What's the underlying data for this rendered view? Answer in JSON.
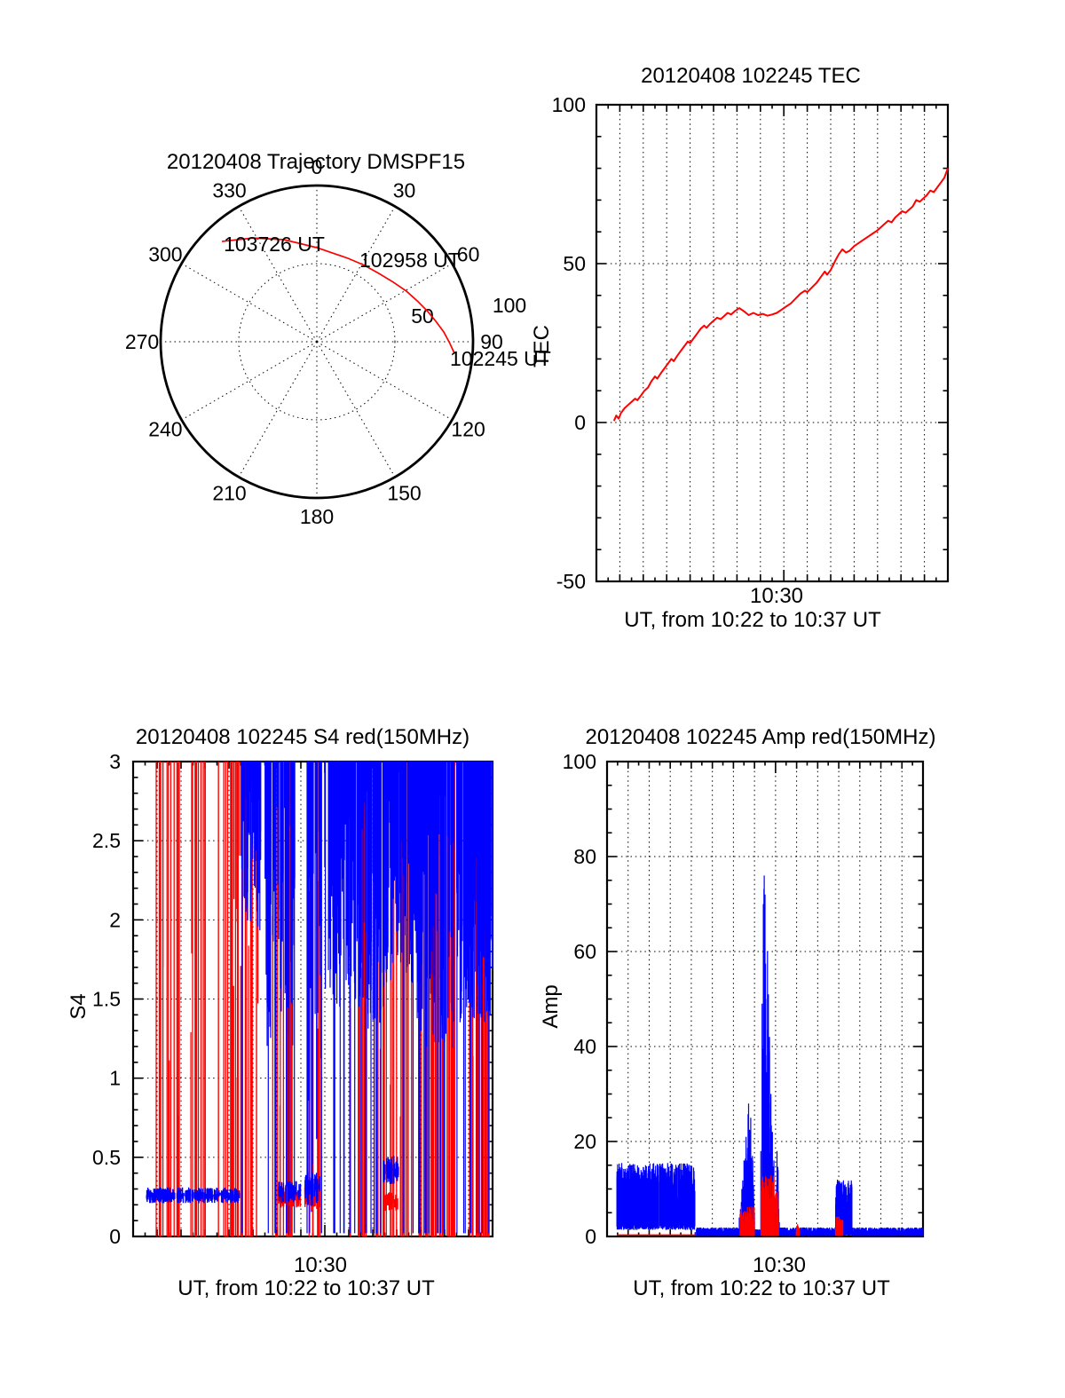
{
  "page": {
    "background": "#ffffff",
    "text_color": "#000000"
  },
  "colors": {
    "series_red": "#ff0000",
    "series_blue": "#0000ff",
    "axis": "#000000"
  },
  "chart_data": [
    {
      "id": "trajectory-polar",
      "type": "line",
      "title": "20120408 Trajectory DMSPF15",
      "grid": "dotted",
      "angle_tick_labels": [
        "0",
        "30",
        "60",
        "90",
        "120",
        "150",
        "180",
        "210",
        "240",
        "270",
        "300",
        "330"
      ],
      "angle_tick_degrees": [
        0,
        30,
        60,
        90,
        120,
        150,
        180,
        210,
        240,
        270,
        300,
        330
      ],
      "radial_tick_labels": [
        "50",
        "100"
      ],
      "radial_tick_values": [
        50,
        100
      ],
      "radial_max": 100,
      "trajectory": {
        "color": "#ff0000",
        "points_angle_radius": [
          [
            -43.4,
            88.4
          ],
          [
            -31.6,
            78.0
          ],
          [
            -17.8,
            68.6
          ],
          [
            0.0,
            60.2
          ],
          [
            10.5,
            57.6
          ],
          [
            20.4,
            57.0
          ],
          [
            31.5,
            57.6
          ],
          [
            42.3,
            59.1
          ],
          [
            52.0,
            62.0
          ],
          [
            60.6,
            65.9
          ],
          [
            68.0,
            69.5
          ],
          [
            74.8,
            73.6
          ],
          [
            80.5,
            77.5
          ],
          [
            85.6,
            81.5
          ],
          [
            90.5,
            85.0
          ],
          [
            94.8,
            88.4
          ]
        ],
        "time_labels": [
          {
            "label": "103726 UT",
            "angle": -43.4,
            "radius": 88.4,
            "dx": 2,
            "dy": 11
          },
          {
            "label": "102958 UT",
            "angle": 42.3,
            "radius": 59.1,
            "dx": -22,
            "dy": -7
          },
          {
            "label": "102245 UT",
            "angle": 94.8,
            "radius": 88.4,
            "dx": -5,
            "dy": 14
          }
        ]
      }
    },
    {
      "id": "tec",
      "type": "line",
      "title": "20120408 102245 TEC",
      "ylabel": "TEC",
      "xlabel": "UT, from 10:22 to 10:37 UT",
      "xtick_label": "10:30",
      "xtick_minute": 8,
      "x_start": "10:22",
      "x_end": "10:37",
      "x_span_minutes": 15,
      "ylim": [
        -50,
        100
      ],
      "ymajor": 50,
      "yminor": 10,
      "ytick_labels": [
        "100",
        "50",
        "0",
        "-50"
      ],
      "ytick_values": [
        100,
        50,
        0,
        -50
      ],
      "grid_y": [
        0,
        50
      ],
      "series": [
        {
          "name": "TEC",
          "color": "#ff0000",
          "points": [
            [
              0.75,
              0.5
            ],
            [
              0.85,
              2.2
            ],
            [
              0.95,
              1.2
            ],
            [
              1.05,
              3.0
            ],
            [
              1.2,
              4.5
            ],
            [
              1.35,
              5.5
            ],
            [
              1.5,
              6.5
            ],
            [
              1.65,
              7.5
            ],
            [
              1.75,
              7.0
            ],
            [
              1.9,
              8.5
            ],
            [
              2.05,
              10.0
            ],
            [
              2.2,
              11.0
            ],
            [
              2.35,
              13.0
            ],
            [
              2.5,
              14.5
            ],
            [
              2.6,
              13.8
            ],
            [
              2.75,
              15.5
            ],
            [
              2.9,
              17.0
            ],
            [
              3.05,
              18.5
            ],
            [
              3.2,
              20.0
            ],
            [
              3.3,
              19.3
            ],
            [
              3.45,
              21.0
            ],
            [
              3.6,
              22.5
            ],
            [
              3.75,
              24.0
            ],
            [
              3.9,
              25.5
            ],
            [
              4.0,
              25.0
            ],
            [
              4.15,
              26.5
            ],
            [
              4.3,
              28.0
            ],
            [
              4.45,
              29.5
            ],
            [
              4.6,
              30.5
            ],
            [
              4.7,
              29.8
            ],
            [
              4.85,
              31.0
            ],
            [
              5.0,
              32.0
            ],
            [
              5.15,
              33.0
            ],
            [
              5.3,
              32.5
            ],
            [
              5.45,
              33.5
            ],
            [
              5.6,
              34.5
            ],
            [
              5.75,
              34.0
            ],
            [
              5.9,
              35.0
            ],
            [
              6.1,
              36.0
            ],
            [
              6.3,
              35.0
            ],
            [
              6.5,
              33.8
            ],
            [
              6.7,
              34.5
            ],
            [
              6.9,
              33.8
            ],
            [
              7.1,
              34.2
            ],
            [
              7.3,
              33.6
            ],
            [
              7.5,
              34.0
            ],
            [
              7.7,
              34.5
            ],
            [
              7.9,
              35.5
            ],
            [
              8.1,
              36.5
            ],
            [
              8.3,
              37.5
            ],
            [
              8.5,
              39.0
            ],
            [
              8.7,
              40.5
            ],
            [
              8.9,
              41.5
            ],
            [
              9.0,
              41.0
            ],
            [
              9.2,
              42.5
            ],
            [
              9.4,
              44.0
            ],
            [
              9.6,
              46.0
            ],
            [
              9.75,
              47.5
            ],
            [
              9.85,
              46.5
            ],
            [
              10.0,
              48.0
            ],
            [
              10.2,
              51.0
            ],
            [
              10.35,
              53.0
            ],
            [
              10.5,
              54.5
            ],
            [
              10.65,
              53.5
            ],
            [
              10.8,
              54.0
            ],
            [
              11.0,
              55.5
            ],
            [
              11.2,
              56.5
            ],
            [
              11.4,
              57.5
            ],
            [
              11.6,
              58.5
            ],
            [
              11.8,
              59.5
            ],
            [
              12.0,
              60.5
            ],
            [
              12.15,
              61.5
            ],
            [
              12.3,
              62.5
            ],
            [
              12.45,
              63.5
            ],
            [
              12.6,
              63.0
            ],
            [
              12.75,
              64.5
            ],
            [
              12.9,
              65.5
            ],
            [
              13.05,
              66.5
            ],
            [
              13.2,
              66.0
            ],
            [
              13.35,
              67.0
            ],
            [
              13.5,
              68.0
            ],
            [
              13.65,
              70.0
            ],
            [
              13.8,
              69.5
            ],
            [
              13.95,
              70.5
            ],
            [
              14.1,
              71.5
            ],
            [
              14.25,
              73.0
            ],
            [
              14.4,
              72.5
            ],
            [
              14.55,
              74.0
            ],
            [
              14.7,
              75.5
            ],
            [
              14.85,
              77.0
            ],
            [
              15.0,
              80.0
            ]
          ]
        }
      ]
    },
    {
      "id": "s4",
      "type": "scintillation-vlines",
      "title": "20120408 102245 S4 red(150MHz)",
      "ylabel": "S4",
      "xlabel": "UT, from 10:22 to 10:37 UT",
      "xtick_label": "10:30",
      "xtick_minute": 8,
      "x_start": "10:22",
      "x_end": "10:37",
      "x_span_minutes": 15,
      "ylim": [
        0,
        3
      ],
      "ymajor": 0.5,
      "yminor": 0.1,
      "ytick_labels": [
        "3",
        "2.5",
        "2",
        "1.5",
        "1",
        "0.5",
        "0"
      ],
      "ytick_values": [
        3,
        2.5,
        2,
        1.5,
        1,
        0.5,
        0
      ],
      "grid_y": [
        0.5,
        1,
        1.5,
        2,
        2.5
      ],
      "red_color": "#ff0000",
      "blue_color": "#0000ff",
      "red_full_bursts": [
        [
          0.95,
          1.95,
          18
        ],
        [
          2.35,
          3.05,
          13
        ],
        [
          3.55,
          4.55,
          26
        ],
        [
          4.55,
          5.3,
          12
        ],
        [
          5.55,
          6.65,
          14
        ],
        [
          7.3,
          7.95,
          8
        ],
        [
          8.95,
          9.8,
          14
        ],
        [
          10.05,
          11.65,
          30
        ],
        [
          11.85,
          13.0,
          22
        ],
        [
          13.1,
          13.45,
          24
        ],
        [
          13.95,
          14.55,
          16
        ],
        [
          14.6,
          15.0,
          12
        ]
      ],
      "blue_canopy": [
        [
          4.5,
          5.35,
          70,
          1.9,
          2.95,
          0.05
        ],
        [
          5.5,
          6.75,
          100,
          1.2,
          2.9,
          0.1
        ],
        [
          7.25,
          8.05,
          28,
          0.1,
          2.6,
          0.18
        ],
        [
          8.15,
          9.6,
          130,
          1.45,
          2.95,
          0.05
        ],
        [
          9.6,
          10.45,
          80,
          1.3,
          2.85,
          0.06
        ],
        [
          10.45,
          11.9,
          130,
          1.6,
          2.95,
          0.04
        ],
        [
          11.85,
          13.4,
          140,
          1.15,
          2.9,
          0.06
        ],
        [
          13.5,
          15.0,
          170,
          1.35,
          2.8,
          0.05
        ]
      ],
      "baseline_clusters": [
        [
          0.55,
          4.45,
          "blue",
          0.26,
          0.05,
          240
        ],
        [
          6.05,
          7.0,
          "red",
          0.25,
          0.07,
          55
        ],
        [
          6.05,
          7.0,
          "blue",
          0.28,
          0.07,
          55
        ],
        [
          7.15,
          7.8,
          "red",
          0.27,
          0.1,
          40
        ],
        [
          7.18,
          7.8,
          "blue",
          0.3,
          0.11,
          34
        ],
        [
          10.45,
          11.1,
          "blue",
          0.42,
          0.09,
          44
        ],
        [
          10.5,
          11.05,
          "red",
          0.22,
          0.06,
          38
        ]
      ]
    },
    {
      "id": "amp",
      "type": "spike-vlines",
      "title": "20120408 102245 Amp red(150MHz)",
      "ylabel": "Amp",
      "xlabel": "UT, from 10:22 to 10:37 UT",
      "xtick_label": "10:30",
      "xtick_minute": 8,
      "x_start": "10:22",
      "x_end": "10:37",
      "x_span_minutes": 15,
      "ylim": [
        0,
        100
      ],
      "ymajor": 20,
      "yminor": 5,
      "ytick_labels": [
        "100",
        "80",
        "60",
        "40",
        "20",
        "0"
      ],
      "ytick_values": [
        100,
        80,
        60,
        40,
        20,
        0
      ],
      "grid_y": [
        20,
        40,
        60,
        80
      ],
      "red_color": "#ff0000",
      "blue_color": "#0000ff",
      "blue_peak_max": 76,
      "blue_noise_bands": [
        [
          0.46,
          4.17,
          2.3,
          7.5,
          15.5,
          560
        ],
        [
          4.17,
          6.28,
          0.15,
          0.7,
          1.9,
          320
        ],
        [
          7.0,
          7.28,
          0.15,
          0.6,
          1.5,
          50
        ],
        [
          8.2,
          10.85,
          0.15,
          0.7,
          1.9,
          420
        ],
        [
          10.85,
          11.63,
          0.3,
          4.5,
          12.0,
          130
        ],
        [
          11.63,
          15.0,
          0.15,
          0.7,
          1.9,
          520
        ]
      ],
      "blue_spike_clusters": [
        {
          "t0": 6.28,
          "t1": 7.0,
          "envelope": [
            [
              6.28,
              4
            ],
            [
              6.4,
              10
            ],
            [
              6.5,
              16
            ],
            [
              6.6,
              21
            ],
            [
              6.72,
              28
            ],
            [
              6.82,
              25
            ],
            [
              6.92,
              16
            ],
            [
              7.0,
              5
            ]
          ],
          "slits": []
        },
        {
          "t0": 7.3,
          "t1": 7.98,
          "envelope": [
            [
              7.3,
              18
            ],
            [
              7.36,
              49
            ],
            [
              7.42,
              70
            ],
            [
              7.46,
              76
            ],
            [
              7.5,
              72
            ],
            [
              7.54,
              50
            ],
            [
              7.58,
              34
            ],
            [
              7.62,
              60
            ],
            [
              7.66,
              51
            ],
            [
              7.71,
              42
            ],
            [
              7.78,
              30
            ],
            [
              7.85,
              22
            ],
            [
              7.92,
              16
            ],
            [
              7.98,
              8
            ]
          ],
          "slits": [
            7.49,
            7.6
          ]
        },
        {
          "t0": 8.02,
          "t1": 8.18,
          "envelope": [
            [
              8.02,
              4
            ],
            [
              8.07,
              18
            ],
            [
              8.12,
              14
            ],
            [
              8.18,
              3
            ]
          ],
          "slits": []
        }
      ],
      "red_flat": [
        [
          0.46,
          4.17,
          0.3
        ]
      ],
      "red_clusters": [
        [
          6.3,
          7.0,
          1.5,
          6.5,
          60
        ],
        [
          7.3,
          7.98,
          3.0,
          13.0,
          80
        ],
        [
          8.02,
          8.16,
          2.0,
          10.0,
          18
        ],
        [
          8.98,
          9.15,
          0.8,
          2.6,
          20
        ],
        [
          10.85,
          11.2,
          1.2,
          4.2,
          30
        ]
      ]
    }
  ]
}
